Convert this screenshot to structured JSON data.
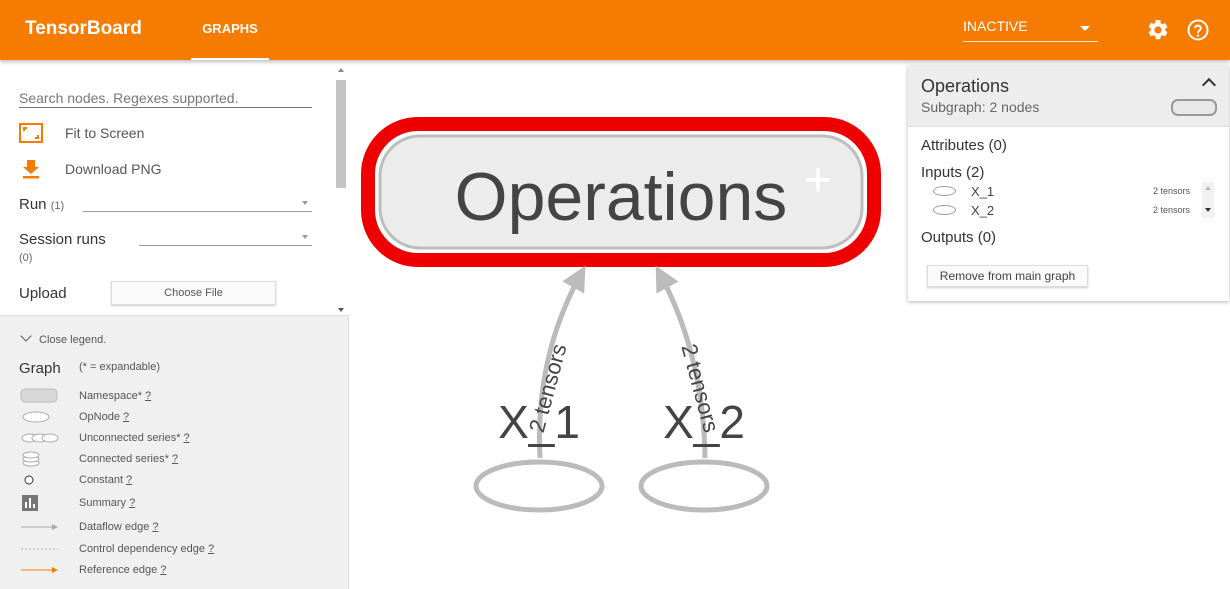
{
  "header": {
    "brand": "TensorBoard",
    "tab_label": "GRAPHS",
    "run_select_value": "INACTIVE",
    "settings_icon": "gear-icon",
    "help_icon": "help-icon"
  },
  "sidebar": {
    "search_placeholder": "Search nodes. Regexes supported.",
    "fit_label": "Fit to Screen",
    "download_label": "Download PNG",
    "run_label": "Run",
    "run_count": "(1)",
    "session_label": "Session runs",
    "session_count": "(0)",
    "upload_label": "Upload",
    "choose_file": "Choose File",
    "accent": "#f57c00"
  },
  "legend": {
    "toggle_label": "Close legend.",
    "title": "Graph",
    "subtitle": "(* = expandable)",
    "items": [
      {
        "label": "Namespace*",
        "q": "?"
      },
      {
        "label": "OpNode",
        "q": "?"
      },
      {
        "label": "Unconnected series*",
        "q": "?"
      },
      {
        "label": "Connected series*",
        "q": "?"
      },
      {
        "label": "Constant",
        "q": "?"
      },
      {
        "label": "Summary",
        "q": "?"
      },
      {
        "label": "Dataflow edge",
        "q": "?"
      },
      {
        "label": "Control dependency edge",
        "q": "?"
      },
      {
        "label": "Reference edge",
        "q": "?"
      }
    ]
  },
  "graph": {
    "namespace_label": "Operations",
    "expand_mark": "+",
    "highlight_color": "#ee0000",
    "nodes": [
      {
        "label": "X_1",
        "edge_label": "2 tensors"
      },
      {
        "label": "X_2",
        "edge_label": "2 tensors"
      }
    ]
  },
  "info_card": {
    "title": "Operations",
    "subtitle": "Subgraph: 2 nodes",
    "attributes": "Attributes (0)",
    "inputs": "Inputs (2)",
    "input_rows": [
      {
        "name": "X_1",
        "count": "2 tensors"
      },
      {
        "name": "X_2",
        "count": "2 tensors"
      }
    ],
    "outputs": "Outputs (0)",
    "remove_button": "Remove from main graph"
  }
}
